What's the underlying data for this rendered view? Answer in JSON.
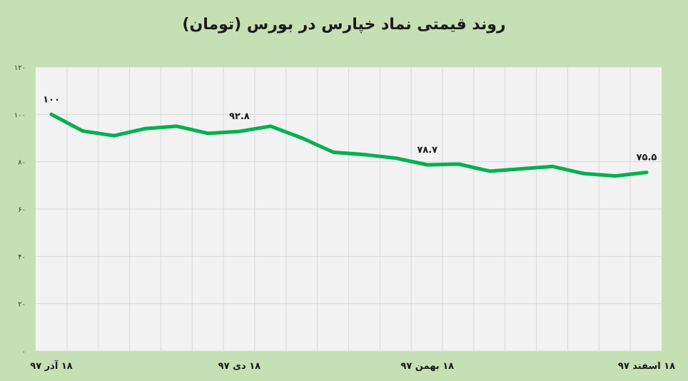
{
  "chart_data": {
    "type": "line",
    "title": "روند قیمتی نماد خپارس در بورس (تومان)",
    "ylim": [
      0,
      120
    ],
    "y_ticks": [
      "۰",
      "۲۰",
      "۴۰",
      "۶۰",
      "۸۰",
      "۱۰۰",
      "۱۲۰"
    ],
    "grid": true,
    "line_color": "#00b050",
    "x_labels": [
      {
        "label": "۱۸ آذر ۹۷",
        "index": 0
      },
      {
        "label": "۱۸ دی ۹۷",
        "index": 6
      },
      {
        "label": "۱۸ بهمن ۹۷",
        "index": 12
      },
      {
        "label": "۱۸ اسفند ۹۷",
        "index": 19
      }
    ],
    "values": [
      100,
      93,
      91,
      94,
      95,
      92,
      92.8,
      95,
      90,
      84,
      83,
      81.5,
      78.7,
      79,
      76,
      77,
      78,
      75,
      74,
      75.5
    ],
    "data_labels": [
      {
        "index": 0,
        "text": "۱۰۰"
      },
      {
        "index": 6,
        "text": "۹۲.۸"
      },
      {
        "index": 12,
        "text": "۷۸.۷"
      },
      {
        "index": 19,
        "text": "۷۵.۵"
      }
    ]
  }
}
